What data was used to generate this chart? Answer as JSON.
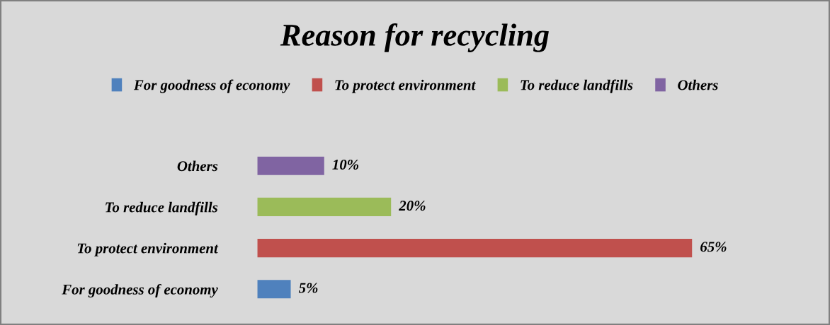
{
  "chart_data": {
    "type": "bar",
    "orientation": "horizontal",
    "stacked": true,
    "title": "Reason for recycling",
    "categories": [
      "Others",
      "To reduce landfills",
      "To protect environment",
      "For goodness of economy"
    ],
    "series": [
      {
        "name": "For goodness of economy",
        "color": "#4f81bd",
        "values": [
          null,
          null,
          null,
          5
        ],
        "value_labels": [
          null,
          null,
          null,
          "5%"
        ]
      },
      {
        "name": "To protect environment",
        "color": "#c0504d",
        "values": [
          null,
          null,
          65,
          null
        ],
        "value_labels": [
          null,
          null,
          "65%",
          null
        ]
      },
      {
        "name": "To reduce landfills",
        "color": "#9bbb59",
        "values": [
          null,
          20,
          null,
          null
        ],
        "value_labels": [
          null,
          "20%",
          null,
          null
        ]
      },
      {
        "name": "Others",
        "color": "#8064a2",
        "values": [
          10,
          null,
          null,
          null
        ],
        "value_labels": [
          "10%",
          null,
          null,
          null
        ]
      }
    ],
    "legend": "top",
    "grid": false,
    "tick_labels": "y"
  }
}
